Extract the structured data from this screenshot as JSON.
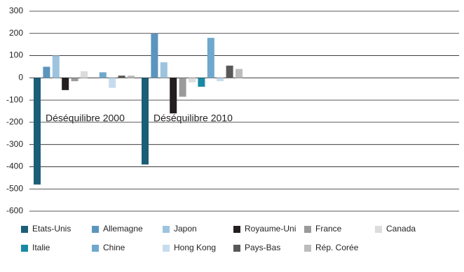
{
  "chart_data": {
    "type": "bar",
    "categories": [
      "Déséquilibre 2000",
      "Déséquilibre 2010"
    ],
    "series": [
      {
        "name": "Etats-Unis",
        "color": "#1b5e78",
        "values": [
          -480,
          -390
        ]
      },
      {
        "name": "Allemagne",
        "color": "#5b95bd",
        "values": [
          50,
          200
        ]
      },
      {
        "name": "Japon",
        "color": "#9ec3de",
        "values": [
          100,
          70
        ]
      },
      {
        "name": "Royaume-Uni",
        "color": "#231f20",
        "values": [
          -55,
          -160
        ]
      },
      {
        "name": "France",
        "color": "#9a9a9a",
        "values": [
          -15,
          -85
        ]
      },
      {
        "name": "Canada",
        "color": "#dcdcdc",
        "values": [
          30,
          -20
        ]
      },
      {
        "name": "Italie",
        "color": "#1a89a6",
        "values": [
          0,
          -40
        ]
      },
      {
        "name": "Chine",
        "color": "#6fa8cc",
        "values": [
          25,
          180
        ]
      },
      {
        "name": "Hong Kong",
        "color": "#c6dcee",
        "values": [
          -45,
          -15
        ]
      },
      {
        "name": "Pays-Bas",
        "color": "#585858",
        "values": [
          10,
          55
        ]
      },
      {
        "name": "Rép. Corée",
        "color": "#bcbcbc",
        "values": [
          10,
          40
        ]
      }
    ],
    "ylim": [
      -600,
      300
    ],
    "yticks": [
      -600,
      -500,
      -400,
      -300,
      -200,
      -100,
      0,
      100,
      200,
      300
    ],
    "grid": true
  }
}
